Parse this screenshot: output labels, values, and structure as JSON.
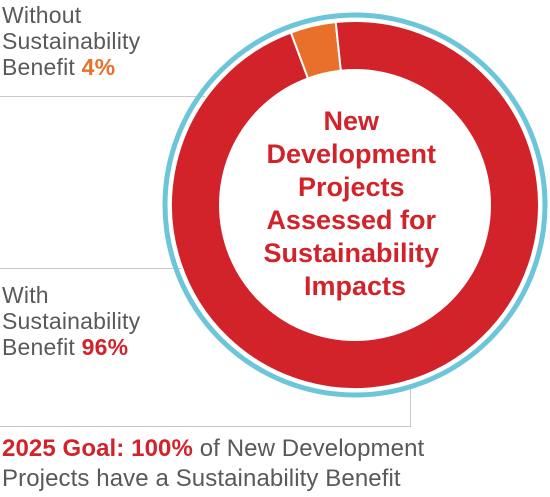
{
  "chart_data": {
    "type": "pie",
    "style": "donut",
    "categories": [
      "Without Sustainability Benefit",
      "With Sustainability Benefit"
    ],
    "values": [
      4,
      96
    ],
    "unit": "%",
    "colors": [
      "#e8702a",
      "#d2232a"
    ],
    "outer_ring_color": "#6cc5da",
    "center_title_lines": [
      "New",
      "Development",
      "Projects",
      "Assessed for",
      "Sustainability",
      "Impacts"
    ]
  },
  "labels": {
    "without": {
      "line1": "Without",
      "line2": "Sustainability",
      "line3_prefix": "Benefit",
      "pct": "4%"
    },
    "with": {
      "line1": "With",
      "line2": "Sustainability",
      "line3_prefix": "Benefit",
      "pct": "96%"
    }
  },
  "goal": {
    "strong": "2025 Goal: 100%",
    "rest_line1": "of New Development",
    "line2": "Projects have a Sustainability Benefit"
  }
}
